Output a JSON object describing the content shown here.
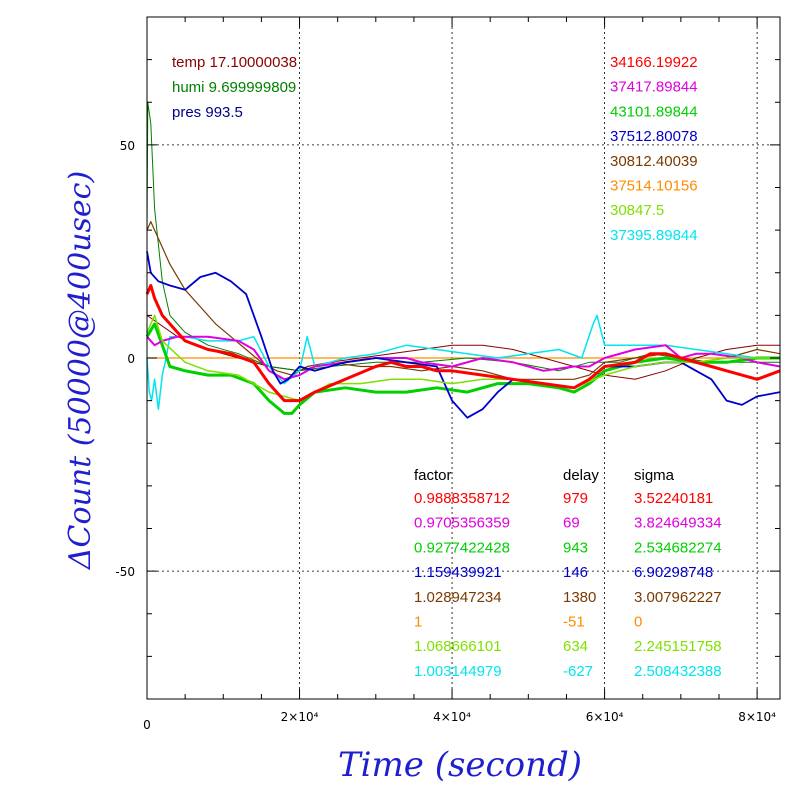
{
  "chart_data": {
    "type": "line",
    "title": "",
    "xlabel": "Time (second)",
    "ylabel": "ΔCount (50000@400usec)",
    "xlim": [
      0,
      83000
    ],
    "ylim": [
      -80,
      80
    ],
    "x_ticks": [
      {
        "value": 0,
        "label": "0"
      },
      {
        "value": 20000,
        "label": "2×10⁴"
      },
      {
        "value": 40000,
        "label": "4×10⁴"
      },
      {
        "value": 60000,
        "label": "6×10⁴"
      },
      {
        "value": 80000,
        "label": "8×10⁴"
      }
    ],
    "y_ticks": [
      {
        "value": 50,
        "label": "50"
      },
      {
        "value": 0,
        "label": "0"
      },
      {
        "value": -50,
        "label": "-50"
      }
    ],
    "grid": true,
    "env_labels": [
      {
        "text": "temp 17.10000038",
        "color": "#8b0000"
      },
      {
        "text": "humi 9.699999809",
        "color": "#008000"
      },
      {
        "text": "pres 993.5",
        "color": "#00008b"
      }
    ],
    "right_values": [
      {
        "text": "34166.19922",
        "color": "#ff0000"
      },
      {
        "text": "37417.89844",
        "color": "#e000e0"
      },
      {
        "text": "43101.89844",
        "color": "#00d000"
      },
      {
        "text": "37512.80078",
        "color": "#0000cc"
      },
      {
        "text": "30812.40039",
        "color": "#7a3a00"
      },
      {
        "text": "37514.10156",
        "color": "#ff8c00"
      },
      {
        "text": "30847.5",
        "color": "#80e000"
      },
      {
        "text": "37395.89844",
        "color": "#00e5ee"
      }
    ],
    "table_headers": [
      "factor",
      "delay",
      "sigma"
    ],
    "table_rows": [
      {
        "factor": "0.9888358712",
        "delay": "979",
        "sigma": "3.52240181",
        "color": "#ff0000"
      },
      {
        "factor": "0.9705356359",
        "delay": "69",
        "sigma": "3.824649334",
        "color": "#e000e0"
      },
      {
        "factor": "0.9277422428",
        "delay": "943",
        "sigma": "2.534682274",
        "color": "#00d000"
      },
      {
        "factor": "1.159439921",
        "delay": "146",
        "sigma": "6.90298748",
        "color": "#0000cc"
      },
      {
        "factor": "1.028947234",
        "delay": "1380",
        "sigma": "3.007962227",
        "color": "#7a3a00"
      },
      {
        "factor": "1",
        "delay": "-51",
        "sigma": "0",
        "color": "#ff8c00"
      },
      {
        "factor": "1.068666101",
        "delay": "634",
        "sigma": "2.245151758",
        "color": "#80e000"
      },
      {
        "factor": "1.003144979",
        "delay": "-627",
        "sigma": "2.508432388",
        "color": "#00e5ee"
      }
    ],
    "series": [
      {
        "color": "#ff8c00",
        "width": 1.2,
        "x": [
          0,
          83000
        ],
        "y": [
          0,
          0
        ]
      },
      {
        "color": "#8b0000",
        "width": 1,
        "x": [
          0,
          4000,
          8000,
          12000,
          16000,
          20000,
          24000,
          28000,
          32000,
          36000,
          40000,
          44000,
          48000,
          52000,
          56000,
          60000,
          64000,
          68000,
          72000,
          76000,
          80000,
          83000
        ],
        "y": [
          10,
          5,
          2,
          0,
          -2,
          -3,
          -1,
          0,
          1,
          2,
          3,
          3,
          2,
          0,
          -2,
          -4,
          -5,
          -3,
          0,
          2,
          3,
          3
        ]
      },
      {
        "color": "#008000",
        "width": 1,
        "x": [
          0,
          100,
          500,
          1000,
          2000,
          3000,
          5000,
          8000,
          12000,
          16000,
          20000,
          24000,
          30000,
          36000,
          42000,
          48000,
          54000,
          58000,
          62000,
          66000,
          70000,
          74000,
          78000,
          83000
        ],
        "y": [
          30,
          60,
          55,
          35,
          18,
          10,
          6,
          3,
          1,
          -2,
          -3,
          -2,
          -1,
          -1,
          0,
          -1,
          -3,
          -1,
          -1,
          1,
          0,
          -1,
          -1,
          -1
        ]
      },
      {
        "color": "#7a3a00",
        "width": 1.2,
        "x": [
          0,
          500,
          1500,
          3000,
          5000,
          7000,
          9000,
          11000,
          13000,
          15000,
          17000,
          19000,
          21000,
          24000,
          28000,
          32000,
          36000,
          40000,
          44000,
          48000,
          52000,
          56000,
          58000,
          60000,
          64000,
          68000,
          72000,
          76000,
          80000,
          83000
        ],
        "y": [
          30,
          32,
          28,
          22,
          16,
          12,
          8,
          5,
          2,
          -1,
          -3,
          -4,
          -2,
          -1,
          -2,
          -2,
          -3,
          -2,
          -3,
          -5,
          -5,
          -5,
          -4,
          -1,
          0,
          1,
          -1,
          0,
          2,
          1
        ]
      },
      {
        "color": "#00e5ee",
        "width": 1.5,
        "x": [
          0,
          300,
          600,
          1000,
          1500,
          2000,
          2500,
          3000,
          5000,
          8000,
          12000,
          14000,
          16000,
          18000,
          20000,
          21000,
          22000,
          26000,
          30000,
          34000,
          38000,
          42000,
          46000,
          50000,
          54000,
          57000,
          58500,
          59000,
          60000,
          64000,
          68000,
          72000,
          76000,
          80000,
          83000
        ],
        "y": [
          0,
          -8,
          -10,
          -5,
          -12,
          -4,
          0,
          5,
          5,
          4,
          4,
          5,
          -2,
          -6,
          -3,
          5,
          -2,
          0,
          1,
          3,
          2,
          1,
          0,
          1,
          2,
          0,
          8,
          10,
          3,
          3,
          3,
          2,
          1,
          0,
          0
        ]
      },
      {
        "color": "#00d000",
        "width": 3,
        "x": [
          0,
          1000,
          2000,
          3000,
          5000,
          8000,
          11000,
          14000,
          16000,
          18000,
          19000,
          20000,
          22000,
          26000,
          30000,
          34000,
          38000,
          42000,
          46000,
          50000,
          54000,
          56000,
          58000,
          60000,
          64000,
          68000,
          72000,
          76000,
          80000,
          83000
        ],
        "y": [
          5,
          8,
          3,
          -2,
          -3,
          -4,
          -4,
          -6,
          -10,
          -13,
          -13,
          -11,
          -8,
          -7,
          -8,
          -8,
          -7,
          -8,
          -6,
          -6,
          -7,
          -8,
          -6,
          -3,
          -1,
          0,
          -1,
          -1,
          0,
          0
        ]
      },
      {
        "color": "#e000e0",
        "width": 2,
        "x": [
          0,
          1000,
          2000,
          4000,
          8000,
          12000,
          14000,
          16000,
          18000,
          20000,
          22000,
          26000,
          30000,
          34000,
          36000,
          40000,
          44000,
          48000,
          52000,
          56000,
          58000,
          60000,
          64000,
          68000,
          70000,
          72000,
          74000,
          78000,
          80000,
          83000
        ],
        "y": [
          5,
          3,
          4,
          5,
          5,
          4,
          2,
          -3,
          -5,
          -4,
          -2,
          -1,
          0,
          0,
          -1,
          -2,
          0,
          -1,
          -3,
          -2,
          -2,
          0,
          2,
          3,
          0,
          1,
          1,
          0,
          -1,
          -2
        ]
      },
      {
        "color": "#0000cc",
        "width": 1.8,
        "x": [
          0,
          500,
          1500,
          3000,
          5000,
          7000,
          9000,
          11000,
          13000,
          15000,
          16500,
          17500,
          18500,
          20000,
          22000,
          26000,
          30000,
          34000,
          38000,
          40000,
          42000,
          44000,
          46000,
          48000,
          52000,
          56000,
          58000,
          60000,
          64000,
          68000,
          70000,
          72000,
          74000,
          76000,
          78000,
          80000,
          83000
        ],
        "y": [
          25,
          20,
          18,
          17,
          16,
          19,
          20,
          18,
          15,
          5,
          -3,
          -6,
          -5,
          -2,
          -3,
          -1,
          0,
          -1,
          -2,
          -10,
          -14,
          -12,
          -8,
          -5,
          -6,
          -7,
          -5,
          -2,
          -2,
          -1,
          -1,
          -3,
          -5,
          -10,
          -11,
          -9,
          -8
        ]
      },
      {
        "color": "#80e000",
        "width": 1.5,
        "x": [
          0,
          1000,
          2000,
          5000,
          8000,
          12000,
          16000,
          20000,
          24000,
          28000,
          32000,
          36000,
          40000,
          44000,
          48000,
          52000,
          56000,
          60000,
          64000,
          68000,
          72000,
          76000,
          80000,
          83000
        ],
        "y": [
          6,
          10,
          4,
          -1,
          -3,
          -4,
          -8,
          -10,
          -6,
          -6,
          -5,
          -5,
          -6,
          -5,
          -5,
          -6,
          -7,
          -4,
          -2,
          -1,
          -1,
          0,
          0,
          0
        ]
      },
      {
        "color": "#ff0000",
        "width": 3,
        "x": [
          0,
          500,
          1000,
          2000,
          3000,
          5000,
          8000,
          11000,
          14000,
          16000,
          18000,
          20000,
          22000,
          26000,
          30000,
          32000,
          34000,
          36000,
          38000,
          40000,
          44000,
          48000,
          52000,
          56000,
          58000,
          60000,
          64000,
          66000,
          68000,
          70000,
          72000,
          74000,
          76000,
          78000,
          80000,
          83000
        ],
        "y": [
          15,
          17,
          14,
          10,
          8,
          4,
          2,
          1,
          -1,
          -6,
          -10,
          -10,
          -8,
          -5,
          -2,
          -1,
          -2,
          -2,
          -3,
          -3,
          -4,
          -5,
          -6,
          -7,
          -5,
          -2,
          -1,
          1,
          1,
          0,
          -1,
          -2,
          -3,
          -4,
          -5,
          -3
        ]
      }
    ]
  }
}
